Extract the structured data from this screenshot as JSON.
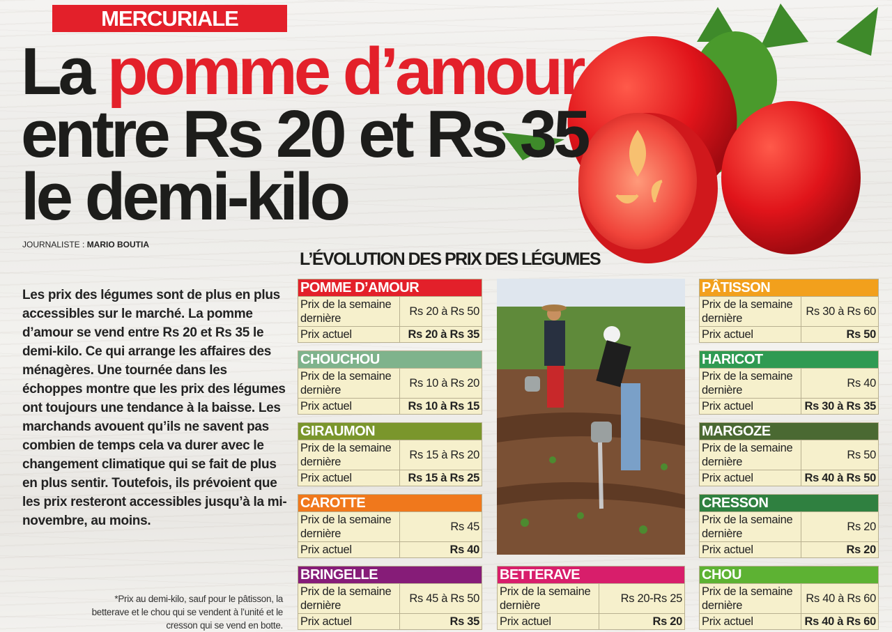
{
  "kicker": "MERCURIALE",
  "headline": {
    "part1": "La ",
    "part2": "pomme d’amour",
    "line2": "entre Rs 20 et Rs 35",
    "line3": "le demi-kilo"
  },
  "byline": {
    "label": "JOURNALISTE : ",
    "name": "MARIO BOUTIA"
  },
  "body": "Les prix des légumes sont de plus en plus accessibles sur le marché. La pomme d’amour se vend entre Rs 20 et Rs 35 le demi-kilo. Ce qui arrange les affaires des ménagères. Une tournée dans les échoppes montre que les prix des légumes ont toujours une tendance à la baisse. Les marchands avouent qu’ils ne savent pas combien de temps cela va durer avec le changement climatique qui se fait de plus en plus sentir. Toutefois, ils prévoient que les prix resteront accessibles jusqu’à la mi-novembre, au moins.",
  "footnote": "*Prix au demi-kilo, sauf pour le pâtisson, la betterave et le chou qui se vendent à l’unité et le cresson qui se vend en botte.",
  "section_title": "L’ÉVOLUTION DES PRIX DES LÉGUMES",
  "row_labels": {
    "last_week": "Prix de la semaine dernière",
    "current": "Prix actuel"
  },
  "tables": [
    {
      "name": "POMME D’AMOUR",
      "color": "#e3202a",
      "last_week": "Rs 20 à Rs 50",
      "current": "Rs 20 à Rs 35"
    },
    {
      "name": "CHOUCHOU",
      "color": "#7fb38c",
      "last_week": "Rs 10 à Rs 20",
      "current": "Rs 10 à Rs 15"
    },
    {
      "name": "GIRAUMON",
      "color": "#7a962c",
      "last_week": "Rs 15 à Rs 20",
      "current": "Rs 15 à Rs 25"
    },
    {
      "name": "CAROTTE",
      "color": "#f0781c",
      "last_week": "Rs 45",
      "current": "Rs 40"
    },
    {
      "name": "BRINGELLE",
      "color": "#861c78",
      "last_week": "Rs 45 à Rs 50",
      "current": "Rs 35"
    },
    {
      "name": "BETTERAVE",
      "color": "#d81e6b",
      "last_week": "Rs 20-Rs 25",
      "current": "Rs 20"
    },
    {
      "name": "PÂTISSON",
      "color": "#f2a01c",
      "last_week": "Rs 30 à Rs 60",
      "current": "Rs 50"
    },
    {
      "name": "HARICOT",
      "color": "#2f9a52",
      "last_week": "Rs 40",
      "current": "Rs 30 à Rs 35"
    },
    {
      "name": "MARGOZE",
      "color": "#4a6932",
      "last_week": "Rs 50",
      "current": "Rs 40 à Rs 50"
    },
    {
      "name": "CRESSON",
      "color": "#2f8040",
      "last_week": "Rs 20",
      "current": "Rs 20"
    },
    {
      "name": "CHOU",
      "color": "#5db233",
      "last_week": "Rs 40 à Rs 60",
      "current": "Rs 40 à Rs 60"
    }
  ]
}
